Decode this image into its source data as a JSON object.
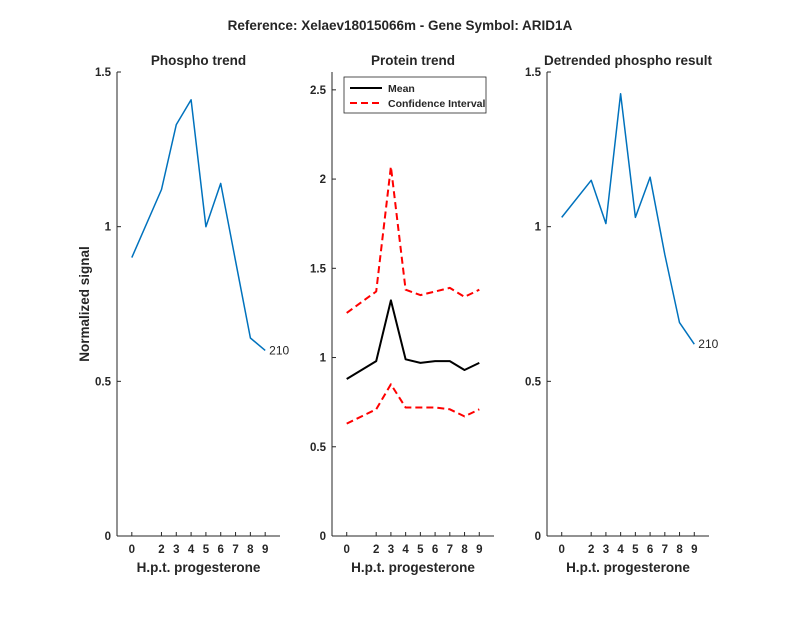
{
  "figure": {
    "suptitle": "Reference:  Xelaev18015066m - Gene Symbol:  ARID1A"
  },
  "chart_data": [
    {
      "type": "line",
      "title": "Phospho trend",
      "xlabel": "H.p.t. progesterone",
      "ylabel": "Normalized signal",
      "x": [
        0,
        2,
        3,
        4,
        5,
        6,
        7,
        8,
        9
      ],
      "xlim": [
        -1,
        10
      ],
      "ylim": [
        0,
        1.5
      ],
      "xticks": [
        "0",
        "2",
        "3",
        "4",
        "5",
        "6",
        "7",
        "8",
        "9"
      ],
      "yticks": [
        "0",
        "0.5",
        "1",
        "1.5"
      ],
      "series": [
        {
          "values": [
            0.9,
            1.12,
            1.33,
            1.41,
            1.0,
            1.14,
            0.89,
            0.64,
            0.6
          ],
          "color": "#0072bd"
        }
      ],
      "end_label": "210"
    },
    {
      "type": "line",
      "title": "Protein trend",
      "xlabel": "H.p.t. progesterone",
      "ylabel": "",
      "x": [
        0,
        2,
        3,
        4,
        5,
        6,
        7,
        8,
        9
      ],
      "xlim": [
        -1,
        10
      ],
      "ylim": [
        0,
        2.6
      ],
      "xticks": [
        "0",
        "2",
        "3",
        "4",
        "5",
        "6",
        "7",
        "8",
        "9"
      ],
      "yticks": [
        "0",
        "0.5",
        "1",
        "1.5",
        "2",
        "2.5"
      ],
      "series": [
        {
          "name": "Mean",
          "values": [
            0.88,
            0.98,
            1.32,
            0.99,
            0.97,
            0.98,
            0.98,
            0.93,
            0.97
          ],
          "color": "#000000",
          "style": "solid"
        },
        {
          "name": "Confidence Interval",
          "values": [
            1.25,
            1.37,
            2.07,
            1.38,
            1.35,
            1.37,
            1.39,
            1.34,
            1.38
          ],
          "color": "#ff0000",
          "style": "dashed"
        },
        {
          "values": [
            0.63,
            0.71,
            0.85,
            0.72,
            0.72,
            0.72,
            0.71,
            0.67,
            0.71
          ],
          "color": "#ff0000",
          "style": "dashed"
        }
      ],
      "legend": {
        "position": "top-left",
        "entries": [
          "Mean",
          "Confidence Interval"
        ]
      }
    },
    {
      "type": "line",
      "title": "Detrended phospho result",
      "xlabel": "H.p.t. progesterone",
      "ylabel": "",
      "x": [
        0,
        2,
        3,
        4,
        5,
        6,
        7,
        8,
        9
      ],
      "xlim": [
        -1,
        10
      ],
      "ylim": [
        0,
        1.5
      ],
      "xticks": [
        "0",
        "2",
        "3",
        "4",
        "5",
        "6",
        "7",
        "8",
        "9"
      ],
      "yticks": [
        "0",
        "0.5",
        "1",
        "1.5"
      ],
      "series": [
        {
          "values": [
            1.03,
            1.15,
            1.01,
            1.43,
            1.03,
            1.16,
            0.91,
            0.69,
            0.62
          ],
          "color": "#0072bd"
        }
      ],
      "end_label": "210"
    }
  ]
}
